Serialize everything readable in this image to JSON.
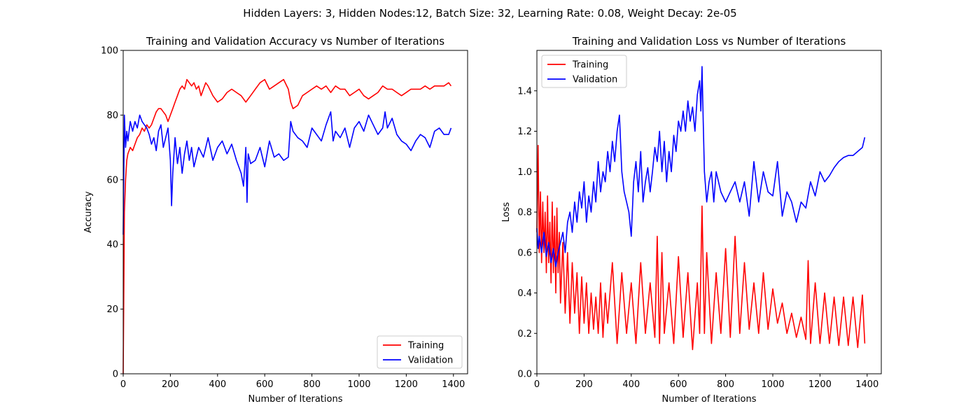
{
  "figure": {
    "suptitle": "Hidden Layers: 3, Hidden Nodes:12, Batch Size: 32, Learning Rate: 0.08, Weight Decay: 2e-05"
  },
  "chart_data": [
    {
      "type": "line",
      "title": "Training and Validation Accuracy vs Number of Iterations",
      "xlabel": "Number of Iterations",
      "ylabel": "Accuracy",
      "xlim": [
        0,
        1460
      ],
      "ylim": [
        0,
        100
      ],
      "xticks": [
        "0",
        "200",
        "400",
        "600",
        "800",
        "1000",
        "1200",
        "1400"
      ],
      "yticks": [
        "0",
        "20",
        "40",
        "60",
        "80",
        "100"
      ],
      "legend_position": "lower-right",
      "series": [
        {
          "name": "Training",
          "color": "#ff0000",
          "x": [
            0,
            5,
            10,
            15,
            20,
            30,
            40,
            50,
            60,
            70,
            80,
            90,
            100,
            110,
            120,
            130,
            140,
            150,
            160,
            170,
            180,
            190,
            200,
            210,
            220,
            230,
            240,
            250,
            260,
            270,
            280,
            290,
            300,
            310,
            320,
            330,
            340,
            350,
            360,
            380,
            400,
            420,
            440,
            460,
            480,
            500,
            520,
            540,
            560,
            580,
            600,
            620,
            640,
            660,
            680,
            700,
            710,
            720,
            740,
            760,
            780,
            800,
            820,
            840,
            860,
            880,
            900,
            920,
            940,
            960,
            980,
            1000,
            1020,
            1040,
            1060,
            1080,
            1100,
            1120,
            1140,
            1160,
            1180,
            1200,
            1220,
            1240,
            1260,
            1280,
            1300,
            1320,
            1340,
            1360,
            1380,
            1390
          ],
          "values": [
            0,
            50,
            60,
            66,
            68,
            70,
            69,
            71,
            73,
            74,
            76,
            75,
            77,
            76,
            77,
            79,
            81,
            82,
            82,
            81,
            80,
            78,
            80,
            82,
            84,
            86,
            88,
            89,
            88,
            91,
            90,
            89,
            90,
            88,
            89,
            86,
            88,
            90,
            89,
            86,
            84,
            85,
            87,
            88,
            87,
            86,
            84,
            86,
            88,
            90,
            91,
            88,
            89,
            90,
            91,
            88,
            84,
            82,
            83,
            86,
            87,
            88,
            89,
            88,
            89,
            87,
            89,
            88,
            88,
            86,
            87,
            88,
            86,
            85,
            86,
            87,
            89,
            88,
            88,
            87,
            86,
            87,
            88,
            88,
            88,
            89,
            88,
            89,
            89,
            89,
            90,
            89
          ]
        },
        {
          "name": "Validation",
          "color": "#0000ff",
          "x": [
            0,
            5,
            10,
            15,
            20,
            30,
            40,
            50,
            60,
            70,
            80,
            90,
            100,
            110,
            120,
            130,
            140,
            150,
            160,
            170,
            180,
            190,
            200,
            205,
            210,
            220,
            230,
            240,
            250,
            260,
            270,
            280,
            290,
            300,
            320,
            340,
            360,
            380,
            400,
            420,
            440,
            460,
            480,
            500,
            510,
            520,
            525,
            530,
            540,
            560,
            580,
            600,
            620,
            640,
            660,
            680,
            700,
            710,
            720,
            740,
            760,
            780,
            800,
            820,
            840,
            860,
            880,
            890,
            900,
            920,
            940,
            960,
            980,
            1000,
            1020,
            1040,
            1060,
            1080,
            1100,
            1110,
            1120,
            1140,
            1160,
            1180,
            1200,
            1220,
            1240,
            1260,
            1280,
            1300,
            1320,
            1340,
            1360,
            1380,
            1390
          ],
          "values": [
            43,
            80,
            70,
            75,
            72,
            78,
            75,
            78,
            76,
            80,
            78,
            77,
            76,
            74,
            71,
            73,
            69,
            75,
            77,
            70,
            73,
            76,
            66,
            52,
            62,
            73,
            65,
            70,
            62,
            68,
            72,
            66,
            70,
            64,
            70,
            67,
            73,
            66,
            70,
            72,
            68,
            71,
            66,
            62,
            58,
            70,
            53,
            68,
            65,
            66,
            70,
            64,
            72,
            67,
            68,
            66,
            67,
            78,
            75,
            73,
            72,
            70,
            76,
            74,
            72,
            77,
            81,
            72,
            75,
            73,
            76,
            70,
            76,
            78,
            75,
            80,
            77,
            74,
            76,
            81,
            76,
            79,
            74,
            72,
            71,
            69,
            72,
            74,
            73,
            70,
            75,
            76,
            74,
            74,
            76
          ]
        }
      ]
    },
    {
      "type": "line",
      "title": "Training and Validation Loss vs Number of Iterations",
      "xlabel": "Number of Iterations",
      "ylabel": "Loss",
      "xlim": [
        0,
        1460
      ],
      "ylim": [
        0,
        1.6
      ],
      "xticks": [
        "0",
        "200",
        "400",
        "600",
        "800",
        "1000",
        "1200",
        "1400"
      ],
      "yticks": [
        "0.0",
        "0.2",
        "0.4",
        "0.6",
        "0.8",
        "1.0",
        "1.2",
        "1.4"
      ],
      "legend_position": "upper-left",
      "series": [
        {
          "name": "Training",
          "color": "#ff0000",
          "x": [
            0,
            5,
            10,
            15,
            20,
            25,
            30,
            35,
            40,
            45,
            50,
            55,
            60,
            65,
            70,
            75,
            80,
            85,
            90,
            95,
            100,
            110,
            120,
            130,
            140,
            150,
            160,
            170,
            180,
            190,
            200,
            210,
            220,
            230,
            240,
            250,
            260,
            270,
            280,
            290,
            300,
            320,
            340,
            360,
            380,
            400,
            420,
            440,
            460,
            480,
            500,
            510,
            520,
            530,
            540,
            560,
            580,
            600,
            620,
            640,
            660,
            680,
            690,
            700,
            710,
            720,
            740,
            760,
            780,
            800,
            820,
            840,
            860,
            880,
            900,
            920,
            940,
            960,
            980,
            1000,
            1020,
            1040,
            1060,
            1080,
            1100,
            1120,
            1140,
            1150,
            1160,
            1180,
            1200,
            1220,
            1240,
            1260,
            1280,
            1300,
            1320,
            1340,
            1360,
            1380,
            1390
          ],
          "values": [
            0.7,
            1.13,
            0.6,
            0.9,
            0.55,
            0.85,
            0.6,
            0.8,
            0.5,
            0.88,
            0.55,
            0.75,
            0.45,
            0.85,
            0.5,
            0.78,
            0.4,
            0.82,
            0.5,
            0.7,
            0.35,
            0.65,
            0.3,
            0.6,
            0.25,
            0.55,
            0.3,
            0.5,
            0.2,
            0.48,
            0.25,
            0.45,
            0.2,
            0.4,
            0.22,
            0.38,
            0.2,
            0.45,
            0.18,
            0.4,
            0.25,
            0.55,
            0.15,
            0.5,
            0.2,
            0.45,
            0.15,
            0.55,
            0.2,
            0.45,
            0.18,
            0.68,
            0.15,
            0.6,
            0.2,
            0.45,
            0.15,
            0.58,
            0.18,
            0.5,
            0.12,
            0.45,
            0.2,
            0.83,
            0.2,
            0.6,
            0.15,
            0.5,
            0.2,
            0.62,
            0.18,
            0.68,
            0.2,
            0.55,
            0.22,
            0.45,
            0.2,
            0.5,
            0.22,
            0.42,
            0.25,
            0.35,
            0.2,
            0.3,
            0.18,
            0.28,
            0.17,
            0.56,
            0.15,
            0.45,
            0.15,
            0.4,
            0.15,
            0.38,
            0.14,
            0.38,
            0.14,
            0.38,
            0.13,
            0.39,
            0.15
          ]
        },
        {
          "name": "Validation",
          "color": "#0000ff",
          "x": [
            0,
            5,
            10,
            20,
            30,
            40,
            50,
            60,
            70,
            80,
            90,
            100,
            110,
            120,
            130,
            140,
            150,
            160,
            170,
            180,
            190,
            200,
            210,
            220,
            230,
            240,
            250,
            260,
            270,
            280,
            290,
            300,
            310,
            320,
            330,
            340,
            350,
            360,
            370,
            380,
            390,
            400,
            410,
            420,
            430,
            440,
            450,
            460,
            470,
            480,
            490,
            500,
            510,
            520,
            530,
            540,
            550,
            560,
            570,
            580,
            590,
            600,
            610,
            620,
            630,
            640,
            650,
            660,
            670,
            680,
            690,
            695,
            700,
            705,
            710,
            720,
            730,
            740,
            750,
            760,
            780,
            800,
            820,
            840,
            860,
            880,
            900,
            920,
            940,
            960,
            980,
            1000,
            1020,
            1040,
            1060,
            1080,
            1100,
            1120,
            1140,
            1160,
            1180,
            1200,
            1220,
            1240,
            1260,
            1280,
            1300,
            1320,
            1340,
            1360,
            1380,
            1390
          ],
          "values": [
            0.72,
            0.62,
            0.68,
            0.6,
            0.7,
            0.58,
            0.65,
            0.55,
            0.62,
            0.53,
            0.6,
            0.65,
            0.7,
            0.6,
            0.75,
            0.8,
            0.7,
            0.85,
            0.75,
            0.9,
            0.82,
            0.95,
            0.75,
            0.88,
            0.8,
            0.95,
            0.85,
            1.05,
            0.9,
            1.0,
            0.95,
            1.1,
            1.0,
            1.15,
            1.05,
            1.2,
            1.28,
            1.0,
            0.9,
            0.85,
            0.8,
            0.68,
            0.95,
            1.05,
            0.9,
            1.1,
            0.85,
            0.95,
            1.02,
            0.9,
            1.0,
            1.12,
            1.05,
            1.2,
            1.0,
            1.15,
            0.95,
            1.1,
            1.0,
            1.18,
            1.1,
            1.25,
            1.2,
            1.3,
            1.2,
            1.35,
            1.25,
            1.32,
            1.2,
            1.38,
            1.45,
            1.3,
            1.52,
            1.25,
            1.0,
            0.85,
            0.95,
            1.0,
            0.85,
            1.0,
            0.9,
            0.85,
            0.9,
            0.95,
            0.85,
            0.95,
            0.78,
            1.05,
            0.85,
            1.0,
            0.9,
            0.88,
            1.05,
            0.78,
            0.9,
            0.85,
            0.75,
            0.85,
            0.82,
            0.95,
            0.88,
            1.0,
            0.95,
            0.98,
            1.02,
            1.05,
            1.07,
            1.08,
            1.08,
            1.1,
            1.12,
            1.17
          ]
        }
      ]
    }
  ]
}
